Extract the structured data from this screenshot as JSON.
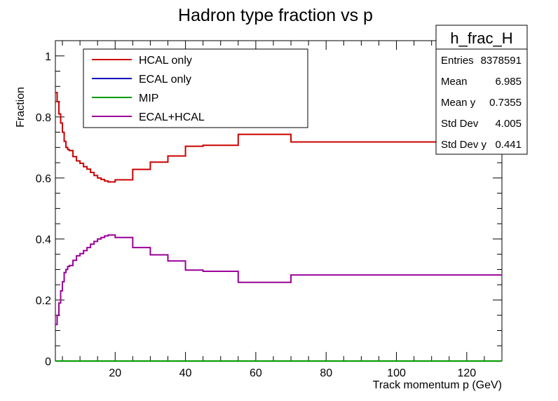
{
  "chart_data": {
    "type": "line",
    "title": "Hadron type fraction vs p",
    "xlabel": "Track momentum p (GeV)",
    "ylabel": "Fraction",
    "xlim": [
      3,
      130
    ],
    "ylim": [
      0,
      1.05
    ],
    "x_ticks": [
      20,
      40,
      60,
      80,
      100,
      120
    ],
    "y_ticks": [
      0,
      0.2,
      0.4,
      0.6,
      0.8,
      1
    ],
    "y_tick_labels": [
      "0",
      "0.2",
      "0.4",
      "0.6",
      "0.8",
      "1"
    ],
    "grid": false,
    "legend_position": "top-left",
    "bin_edges": [
      3,
      3.5,
      4,
      4.5,
      5,
      5.5,
      6,
      6.5,
      7,
      8,
      9,
      10,
      11,
      12,
      13,
      14,
      15,
      16,
      17,
      18,
      20,
      25,
      30,
      35,
      40,
      45,
      55,
      70,
      130
    ],
    "series": [
      {
        "name": "HCAL only",
        "color": "#cc0000",
        "values": [
          0.88,
          0.85,
          0.81,
          0.78,
          0.75,
          0.72,
          0.7,
          0.693,
          0.69,
          0.67,
          0.656,
          0.648,
          0.637,
          0.629,
          0.618,
          0.608,
          0.6,
          0.595,
          0.59,
          0.587,
          0.594,
          0.628,
          0.652,
          0.672,
          0.704,
          0.707,
          0.743,
          0.718,
          0.72
        ]
      },
      {
        "name": "ECAL only",
        "color": "#0000bb",
        "values": [
          0,
          0,
          0,
          0,
          0,
          0,
          0,
          0,
          0,
          0,
          0,
          0,
          0,
          0,
          0,
          0,
          0,
          0,
          0,
          0,
          0,
          0,
          0,
          0,
          0,
          0,
          0,
          0,
          0
        ]
      },
      {
        "name": "MIP",
        "color": "#009900",
        "values": [
          0,
          0,
          0,
          0,
          0,
          0,
          0,
          0,
          0,
          0,
          0,
          0,
          0,
          0,
          0,
          0,
          0,
          0,
          0,
          0,
          0,
          0,
          0,
          0,
          0,
          0,
          0,
          0,
          0
        ]
      },
      {
        "name": "ECAL+HCAL",
        "color": "#990099",
        "values": [
          0.12,
          0.15,
          0.19,
          0.23,
          0.26,
          0.29,
          0.3,
          0.31,
          0.313,
          0.33,
          0.345,
          0.352,
          0.362,
          0.372,
          0.383,
          0.392,
          0.4,
          0.405,
          0.41,
          0.413,
          0.405,
          0.372,
          0.348,
          0.328,
          0.298,
          0.294,
          0.258,
          0.282,
          0.282
        ]
      }
    ]
  },
  "stats_box": {
    "title": "h_frac_H",
    "rows": [
      {
        "label": "Entries",
        "value": "8378591"
      },
      {
        "label": "Mean",
        "value": "6.985"
      },
      {
        "label": "Mean y",
        "value": "0.7355"
      },
      {
        "label": "Std Dev",
        "value": "4.005"
      },
      {
        "label": "Std Dev y",
        "value": "0.441"
      }
    ]
  }
}
